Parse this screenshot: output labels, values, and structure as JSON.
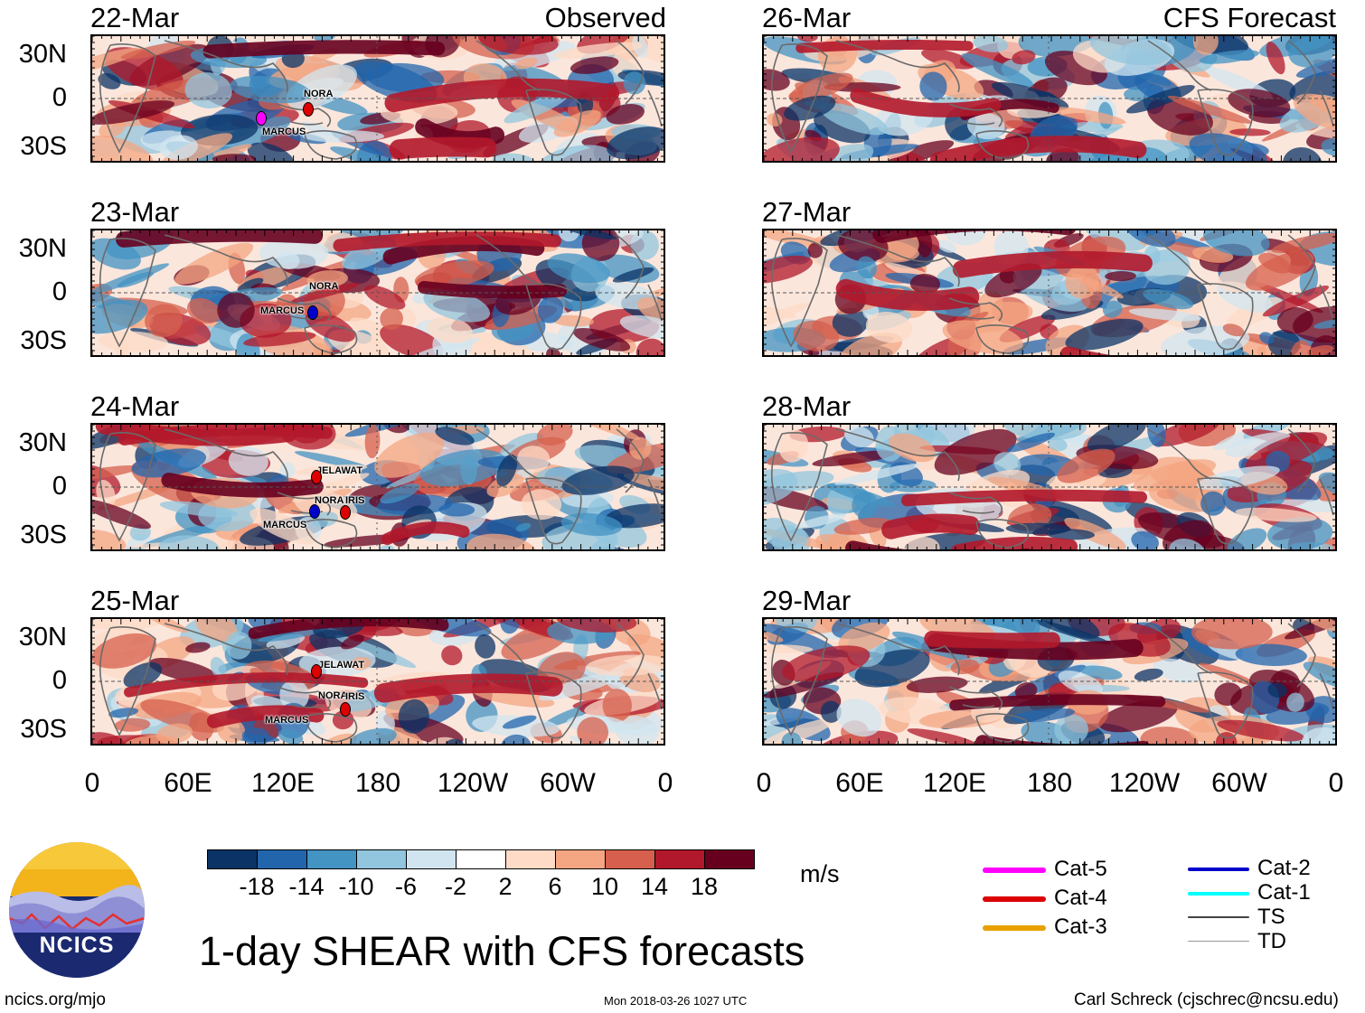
{
  "observed_label": "Observed",
  "forecast_label": "CFS Forecast",
  "panels_left": [
    {
      "date": "22-Mar",
      "storms": [
        "NORA",
        "MARCUS"
      ]
    },
    {
      "date": "23-Mar",
      "storms": [
        "NORA",
        "MARCUS"
      ]
    },
    {
      "date": "24-Mar",
      "storms": [
        "JELAWAT",
        "NORA",
        "IRIS",
        "MARCUS"
      ]
    },
    {
      "date": "25-Mar",
      "storms": [
        "JELAWAT",
        "NORA",
        "IRIS",
        "MARCUS"
      ]
    }
  ],
  "panels_right": [
    {
      "date": "26-Mar"
    },
    {
      "date": "27-Mar"
    },
    {
      "date": "28-Mar"
    },
    {
      "date": "29-Mar"
    }
  ],
  "lat_labels": [
    "30N",
    "0",
    "30S"
  ],
  "lon_labels": [
    "0",
    "60E",
    "120E",
    "180",
    "120W",
    "60W",
    "0"
  ],
  "colorbar": {
    "colors": [
      "#0b3365",
      "#2265ad",
      "#4393c3",
      "#92c5de",
      "#d1e5f0",
      "#ffffff",
      "#fddbc7",
      "#f4a582",
      "#d6604d",
      "#b2182b",
      "#67001f"
    ],
    "labels": [
      "-18",
      "-14",
      "-10",
      "-6",
      "-2",
      "2",
      "6",
      "10",
      "14",
      "18"
    ],
    "unit": "m/s"
  },
  "legend": {
    "left": [
      {
        "label": "Cat-5",
        "color": "#ff00ff"
      },
      {
        "label": "Cat-4",
        "color": "#dd0000"
      },
      {
        "label": "Cat-3",
        "color": "#e8a000"
      }
    ],
    "right": [
      {
        "label": "Cat-2",
        "color": "#0000cc"
      },
      {
        "label": "Cat-1",
        "color": "#00ffff"
      },
      {
        "label": "TS",
        "color": "#444444"
      },
      {
        "label": "TD",
        "color": "#999999"
      }
    ]
  },
  "logo_text": "NCICS",
  "main_title": "1-day SHEAR with CFS forecasts",
  "footer": {
    "left": "ncics.org/mjo",
    "center": "Mon 2018-03-26 1027 UTC",
    "right": "Carl Schreck (cjschrec@ncsu.edu)"
  }
}
